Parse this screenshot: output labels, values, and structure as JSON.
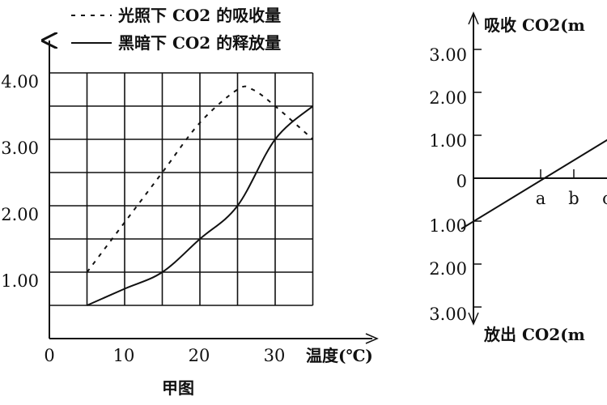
{
  "chart_data": [
    {
      "type": "line",
      "title": "",
      "caption": "甲图",
      "xlabel": "温度(℃)",
      "ylabel": "",
      "x_ticks": [
        "0",
        "10",
        "20",
        "30"
      ],
      "y_ticks": [
        "1.00",
        "2.00",
        "3.00",
        "4.00"
      ],
      "xlim": [
        0,
        35
      ],
      "ylim": [
        0,
        4.5
      ],
      "grid": true,
      "legend_position": "top",
      "series": [
        {
          "name": "光照下 CO2 的吸收量",
          "line_style": "dashed",
          "x": [
            5,
            10,
            15,
            20,
            25,
            27,
            30,
            35
          ],
          "y": [
            1.0,
            1.75,
            2.5,
            3.25,
            3.75,
            3.75,
            3.5,
            3.0
          ]
        },
        {
          "name": "黑暗下 CO2 的释放量",
          "line_style": "solid",
          "x": [
            5,
            10,
            15,
            20,
            25,
            30,
            35
          ],
          "y": [
            0.5,
            0.75,
            1.0,
            1.5,
            2.0,
            3.0,
            3.5
          ]
        }
      ]
    },
    {
      "type": "line",
      "title": "",
      "ylabel_top": "吸收 CO2(m",
      "ylabel_bottom": "放出 CO2(m",
      "y_ticks_top": [
        "3.00",
        "2.00",
        "1.00",
        "0"
      ],
      "y_ticks_bottom": [
        "1.00",
        "2.00",
        "3.00"
      ],
      "x_ticks": [
        "a",
        "b",
        "c"
      ],
      "ylim": [
        -3,
        3.5
      ],
      "grid": false,
      "series": [
        {
          "name": "",
          "line_style": "solid",
          "x": [
            0,
            1,
            2
          ],
          "y": [
            -1.0,
            0,
            1.0
          ]
        }
      ]
    }
  ]
}
